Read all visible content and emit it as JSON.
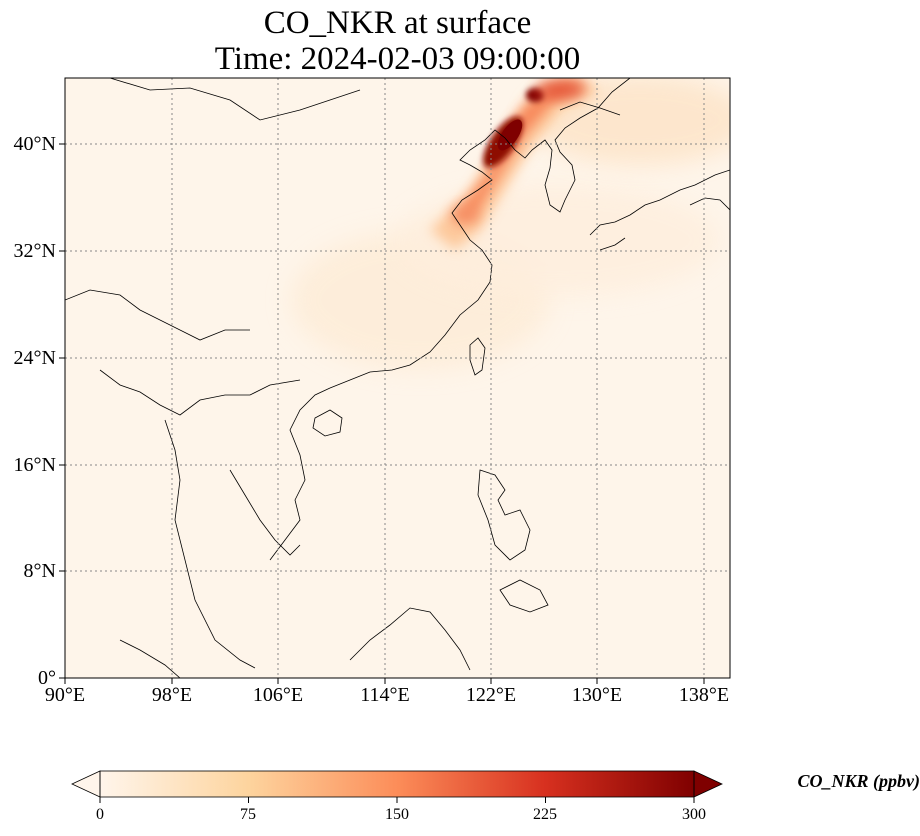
{
  "title_line1": "CO_NKR at surface",
  "title_line2": "Time: 2024-02-03 09:00:00",
  "lat_ticks": [
    "0°",
    "8°N",
    "16°N",
    "24°N",
    "32°N",
    "40°N"
  ],
  "lon_ticks": [
    "90°E",
    "98°E",
    "106°E",
    "114°E",
    "122°E",
    "130°E",
    "138°E"
  ],
  "colorbar": {
    "label": "CO_NKR (ppbv)",
    "ticks": [
      "0",
      "75",
      "150",
      "225",
      "300"
    ],
    "min": 0,
    "max": 300,
    "extend": "both",
    "colormap": [
      "#fff5eb",
      "#fdd49e",
      "#fc8d59",
      "#d7301f",
      "#7f0000"
    ]
  },
  "map": {
    "lon_range": [
      90,
      140
    ],
    "lat_range": [
      0,
      45
    ],
    "background_color": "#fef5ea",
    "gridlines": "dotted",
    "plume_peak_location": "Bohai Sea / Liaoning coast"
  }
}
